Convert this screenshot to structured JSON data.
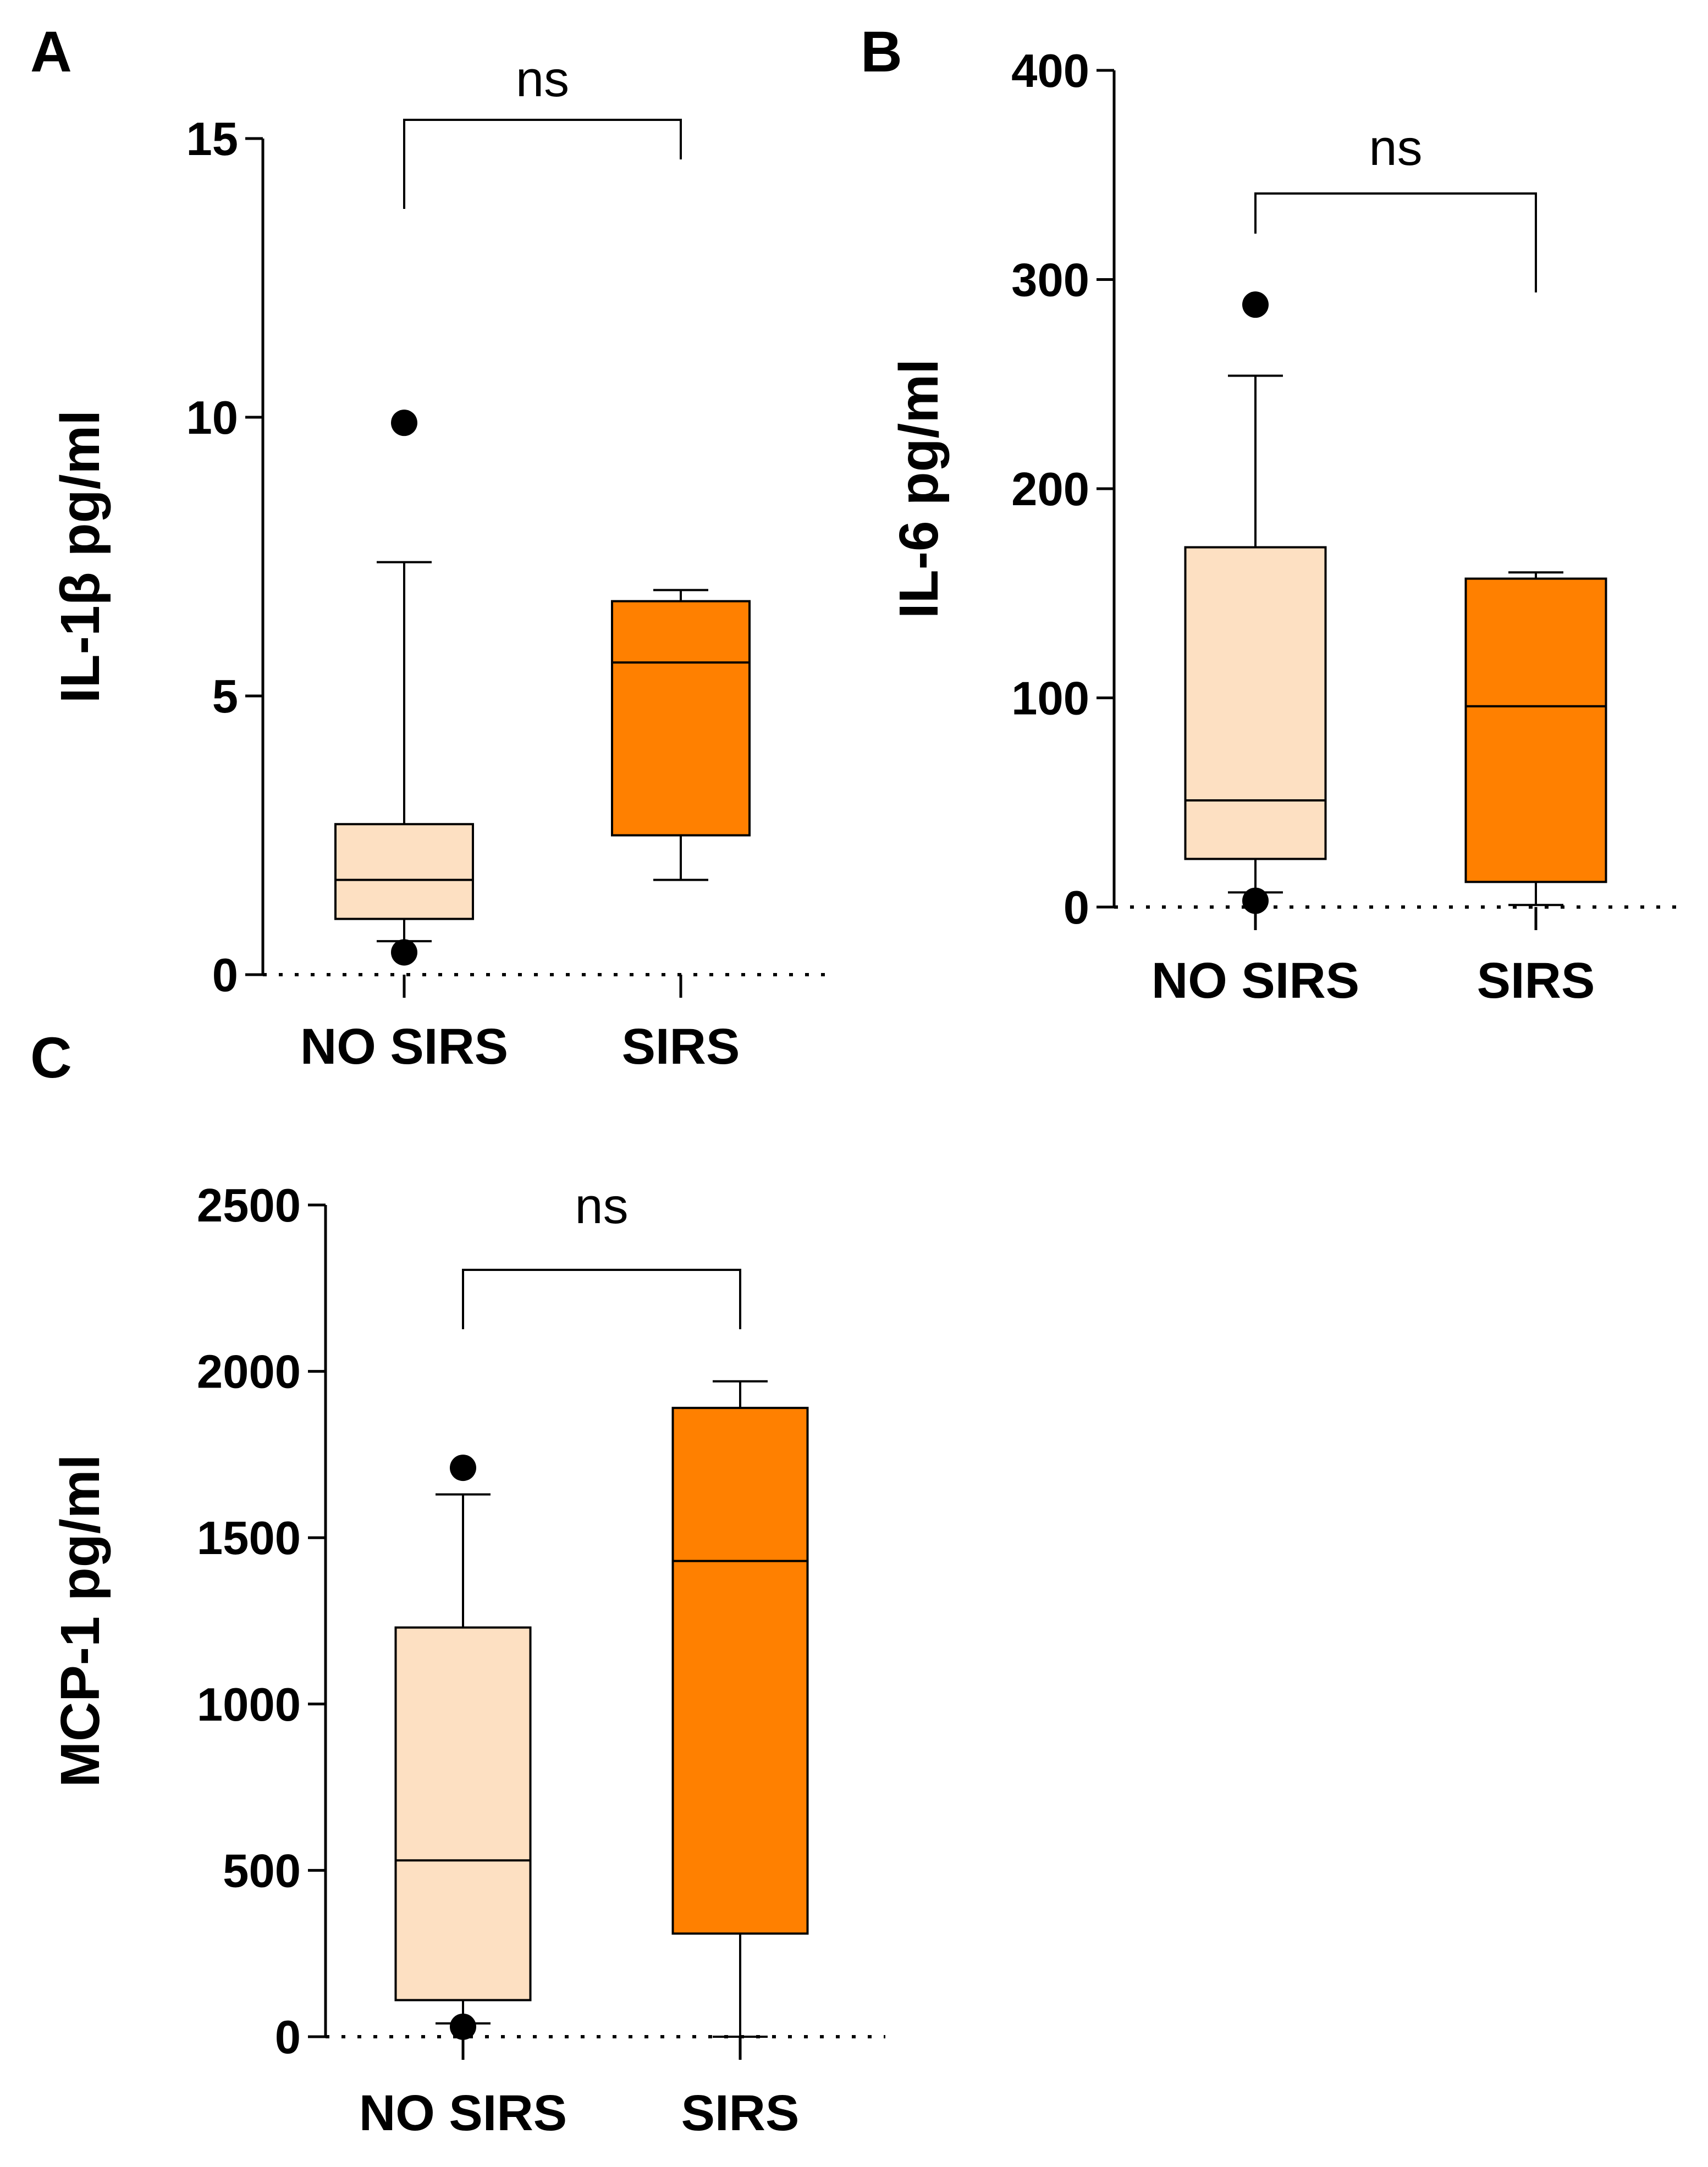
{
  "chart_data": [
    {
      "panel": "A",
      "type": "box",
      "ylabel": "IL-1β pg/ml",
      "ylim": [
        0,
        15
      ],
      "yticks": [
        0,
        5,
        10,
        15
      ],
      "yticks_text": [
        "0",
        "5",
        "10",
        "15"
      ],
      "categories": [
        "NO SIRS",
        "SIRS"
      ],
      "significance": {
        "label": "ns",
        "between": [
          "NO SIRS",
          "SIRS"
        ]
      },
      "boxes": [
        {
          "name": "NO SIRS",
          "color": "#FDE0C2",
          "whisker_low": 0.6,
          "q1": 1.0,
          "median": 1.7,
          "q3": 2.7,
          "whisker_high": 7.4,
          "outliers": [
            9.9,
            0.4
          ]
        },
        {
          "name": "SIRS",
          "color": "#FF8000",
          "whisker_low": 1.7,
          "q1": 2.5,
          "median": 5.6,
          "q3": 6.7,
          "whisker_high": 6.9,
          "outliers": []
        }
      ]
    },
    {
      "panel": "B",
      "type": "box",
      "ylabel": "IL-6 pg/ml",
      "ylim": [
        0,
        400
      ],
      "yticks": [
        0,
        100,
        200,
        300,
        400
      ],
      "yticks_text": [
        "0",
        "100",
        "200",
        "300",
        "400"
      ],
      "categories": [
        "NO SIRS",
        "SIRS"
      ],
      "significance": {
        "label": "ns",
        "between": [
          "NO SIRS",
          "SIRS"
        ]
      },
      "boxes": [
        {
          "name": "NO SIRS",
          "color": "#FDE0C2",
          "whisker_low": 7,
          "q1": 23,
          "median": 51,
          "q3": 172,
          "whisker_high": 254,
          "outliers": [
            288,
            3
          ]
        },
        {
          "name": "SIRS",
          "color": "#FF8000",
          "whisker_low": 1,
          "q1": 12,
          "median": 96,
          "q3": 157,
          "whisker_high": 160,
          "outliers": []
        }
      ]
    },
    {
      "panel": "C",
      "type": "box",
      "ylabel": "MCP-1 pg/ml",
      "ylim": [
        0,
        2500
      ],
      "yticks": [
        0,
        500,
        1000,
        1500,
        2000,
        2500
      ],
      "yticks_text": [
        "0",
        "500",
        "1000",
        "1500",
        "2000",
        "2500"
      ],
      "categories": [
        "NO SIRS",
        "SIRS"
      ],
      "significance": {
        "label": "ns",
        "between": [
          "NO SIRS",
          "SIRS"
        ]
      },
      "boxes": [
        {
          "name": "NO SIRS",
          "color": "#FDE0C2",
          "whisker_low": 40,
          "q1": 110,
          "median": 530,
          "q3": 1230,
          "whisker_high": 1630,
          "outliers": [
            1710,
            30
          ]
        },
        {
          "name": "SIRS",
          "color": "#FF8000",
          "whisker_low": 0,
          "q1": 310,
          "median": 1430,
          "q3": 1890,
          "whisker_high": 1970,
          "outliers": []
        }
      ]
    }
  ]
}
